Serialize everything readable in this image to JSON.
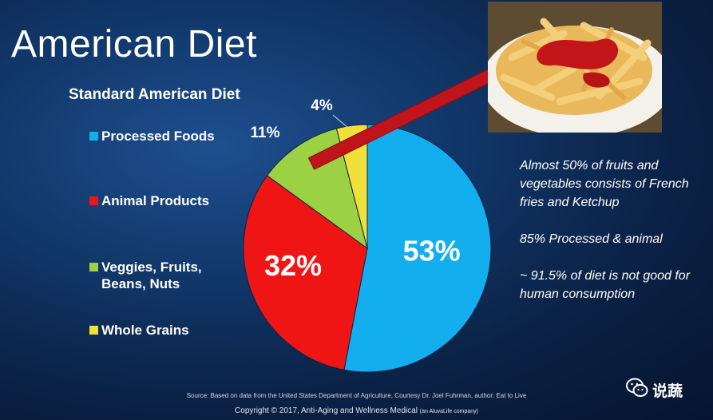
{
  "header": {
    "title": "American Diet"
  },
  "chart_data": {
    "type": "pie",
    "title": "Standard American Diet",
    "series": [
      {
        "name": "Processed Foods",
        "value": 53,
        "label": "53%",
        "color": "#12aeed"
      },
      {
        "name": "Animal Products",
        "value": 32,
        "label": "32%",
        "color": "#f01515"
      },
      {
        "name": "Veggies, Fruits, Beans, Nuts",
        "value": 11,
        "label": "11%",
        "color": "#9bd143"
      },
      {
        "name": "Whole Grains",
        "value": 4,
        "label": "4%",
        "color": "#f2e03a"
      }
    ],
    "legend": "left"
  },
  "legend": {
    "items": [
      {
        "lines": [
          "Processed Foods"
        ],
        "color": "#12aeed"
      },
      {
        "lines": [
          "Animal Products"
        ],
        "color": "#f01515"
      },
      {
        "lines": [
          "Veggies, Fruits,",
          "Beans, Nuts"
        ],
        "color": "#9bd143"
      },
      {
        "lines": [
          "Whole Grains"
        ],
        "color": "#f2e03a"
      }
    ]
  },
  "notes": {
    "note1": "Almost 50% of fruits and vegetables consists of French fries and Ketchup",
    "note2": "85% Processed & animal",
    "note3": "~ 91.5% of diet is not good for human consumption"
  },
  "footer": {
    "source": "Source: Based on data from the United States Department of Agriculture, Courtesy Dr. Joel Fuhrman, author: Eat to Live",
    "copyright": "Copyright © 2017, Anti-Aging and Wellness Medical",
    "company": "(an AluvaLife company)"
  },
  "watermark": {
    "label": "说蔬"
  },
  "colors": {
    "arrow": "#c0141b",
    "background": "#0b2246"
  }
}
